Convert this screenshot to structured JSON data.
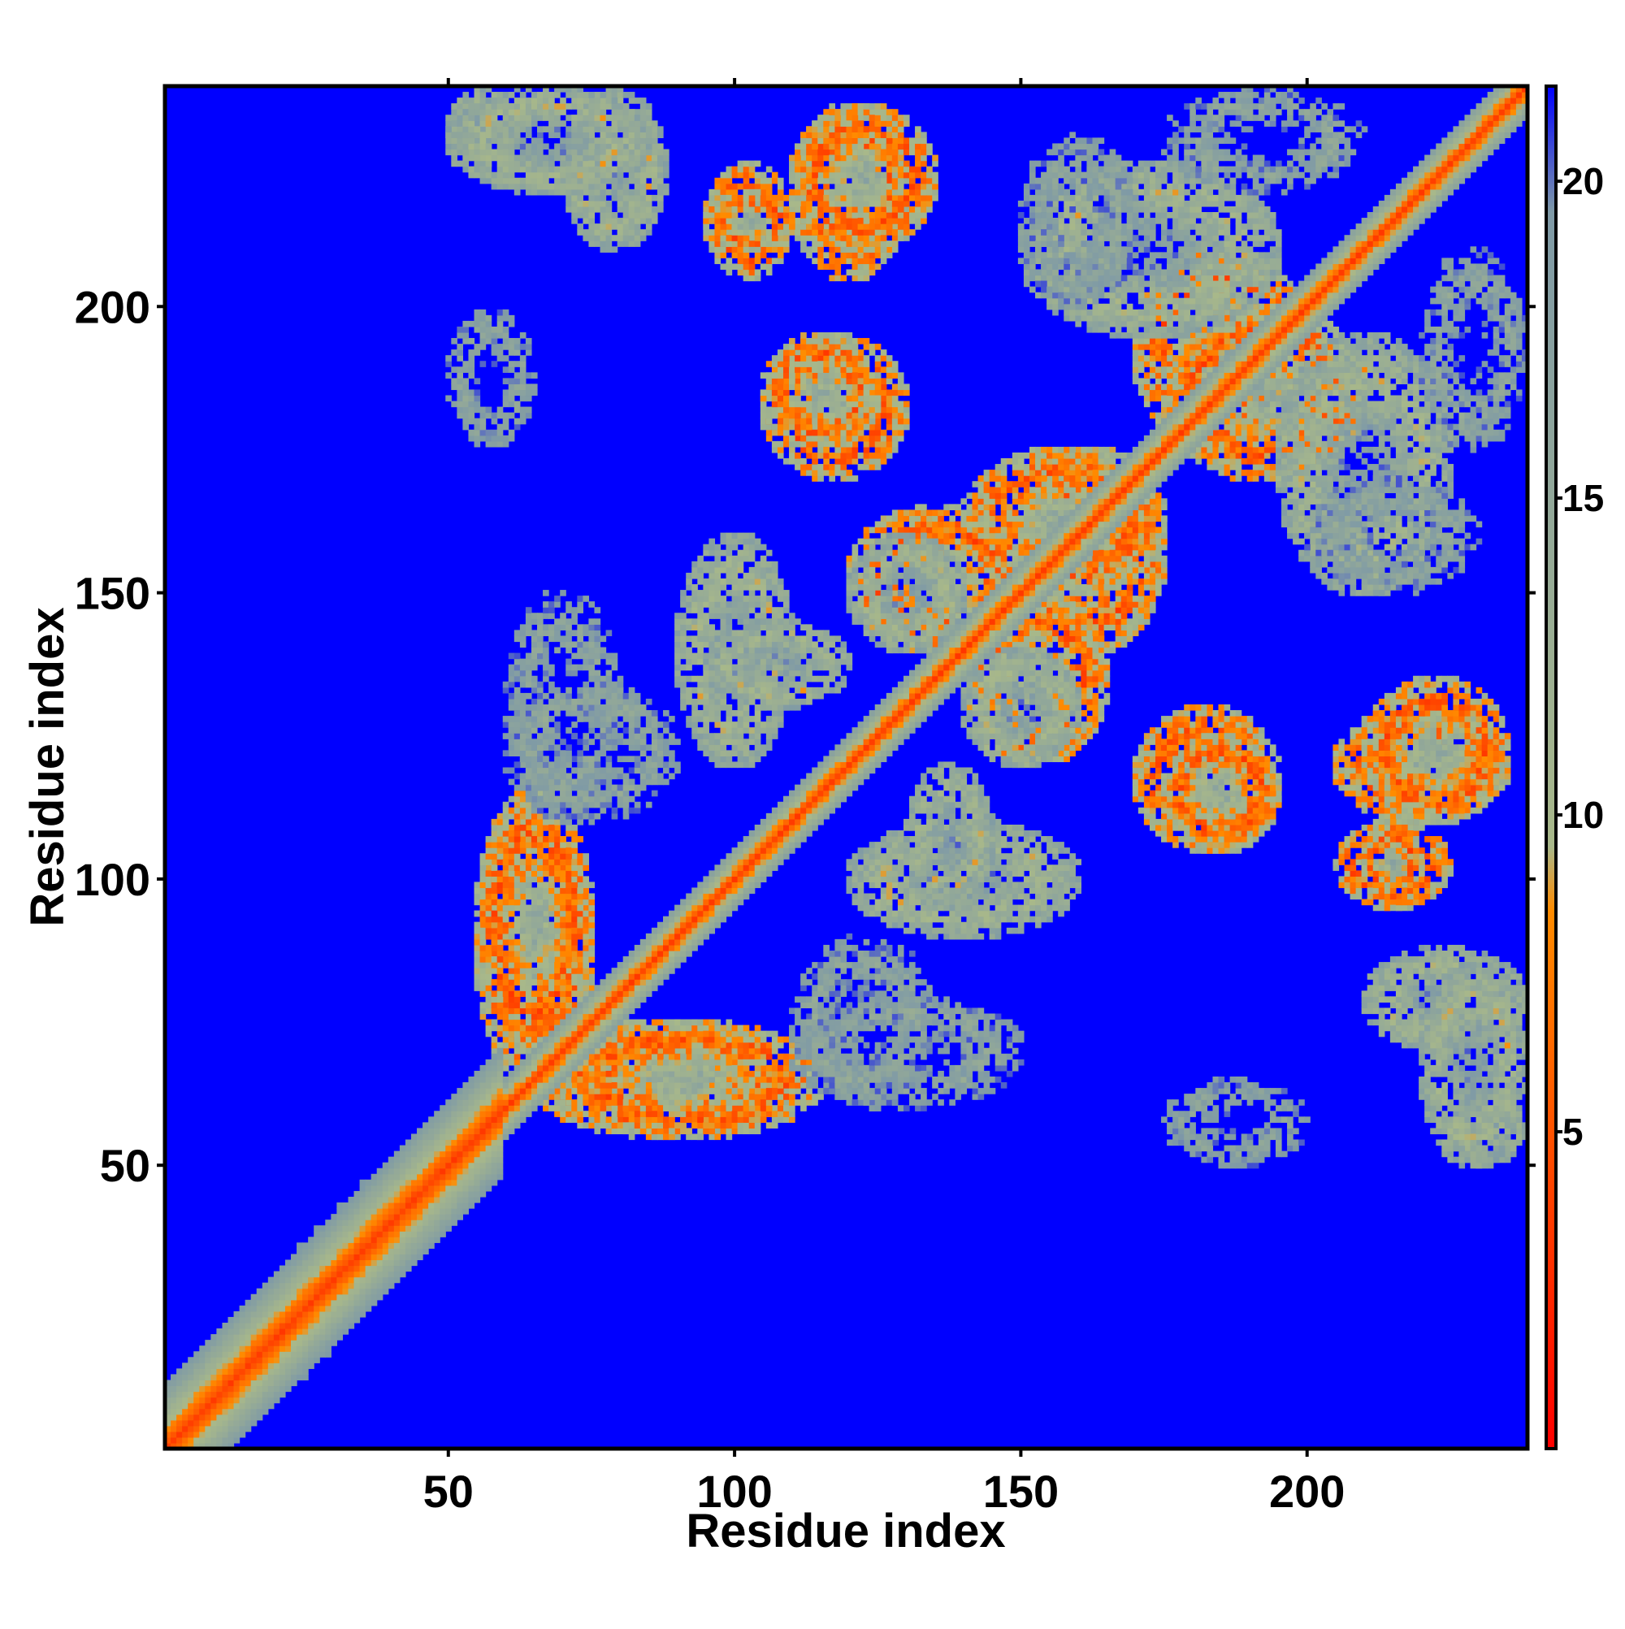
{
  "chart_data": {
    "type": "heatmap",
    "title": "",
    "xlabel": "Residue index",
    "ylabel": "Residue index",
    "xlim": [
      1,
      238
    ],
    "ylim": [
      1,
      238
    ],
    "x_ticks": [
      "50",
      "100",
      "150",
      "200"
    ],
    "x_tick_values": [
      50,
      100,
      150,
      200
    ],
    "y_ticks": [
      "50",
      "100",
      "150",
      "200"
    ],
    "y_tick_values": [
      50,
      100,
      150,
      200
    ],
    "colorbar": {
      "range": [
        0,
        21.5
      ],
      "ticks": [
        "5",
        "10",
        "15",
        "20"
      ],
      "tick_values": [
        5,
        10,
        15,
        20
      ],
      "colors": [
        "#ff0000",
        "#ff8c00",
        "#a8b88a",
        "#7f9aa6",
        "#0000ff"
      ],
      "color_stops": [
        0,
        8.5,
        9.5,
        19.5,
        21.5
      ]
    },
    "diagonal": {
      "near_distance": 3.8,
      "bandwidth_min": 1,
      "bandwidth_max": 238
    },
    "contact_regions": [
      {
        "x": [
          50,
          62
        ],
        "y": [
          225,
          238
        ],
        "level": "mid"
      },
      {
        "x": [
          70,
          88
        ],
        "y": [
          210,
          238
        ],
        "level": "mid"
      },
      {
        "x": [
          95,
          110
        ],
        "y": [
          205,
          225
        ],
        "level": "high"
      },
      {
        "x": [
          110,
          130
        ],
        "y": [
          205,
          235
        ],
        "level": "high"
      },
      {
        "x": [
          105,
          130
        ],
        "y": [
          170,
          195
        ],
        "level": "high"
      },
      {
        "x": [
          150,
          175
        ],
        "y": [
          140,
          175
        ],
        "level": "high"
      },
      {
        "x": [
          170,
          200
        ],
        "y": [
          175,
          210
        ],
        "level": "high"
      },
      {
        "x": [
          175,
          195
        ],
        "y": [
          105,
          125
        ],
        "level": "high"
      },
      {
        "x": [
          210,
          235
        ],
        "y": [
          110,
          135
        ],
        "level": "high"
      },
      {
        "x": [
          210,
          220
        ],
        "y": [
          95,
          110
        ],
        "level": "high"
      },
      {
        "x": [
          220,
          238
        ],
        "y": [
          50,
          85
        ],
        "level": "mid"
      },
      {
        "x": [
          55,
          75
        ],
        "y": [
          65,
          110
        ],
        "level": "high"
      },
      {
        "x": [
          70,
          115
        ],
        "y": [
          55,
          75
        ],
        "level": "high"
      },
      {
        "x": [
          140,
          165
        ],
        "y": [
          120,
          150
        ],
        "level": "high"
      },
      {
        "x": [
          120,
          140
        ],
        "y": [
          140,
          160
        ],
        "level": "mid"
      },
      {
        "x": [
          60,
          80
        ],
        "y": [
          110,
          150
        ],
        "level": "low"
      },
      {
        "x": [
          90,
          110
        ],
        "y": [
          120,
          160
        ],
        "level": "mid"
      },
      {
        "x": [
          130,
          145
        ],
        "y": [
          95,
          120
        ],
        "level": "mid"
      },
      {
        "x": [
          110,
          135
        ],
        "y": [
          60,
          90
        ],
        "level": "low"
      },
      {
        "x": [
          175,
          200
        ],
        "y": [
          50,
          65
        ],
        "level": "low"
      },
      {
        "x": [
          195,
          225
        ],
        "y": [
          150,
          195
        ],
        "level": "mid"
      },
      {
        "x": [
          150,
          170
        ],
        "y": [
          200,
          230
        ],
        "level": "low"
      },
      {
        "x": [
          175,
          210
        ],
        "y": [
          220,
          238
        ],
        "level": "low"
      }
    ]
  }
}
